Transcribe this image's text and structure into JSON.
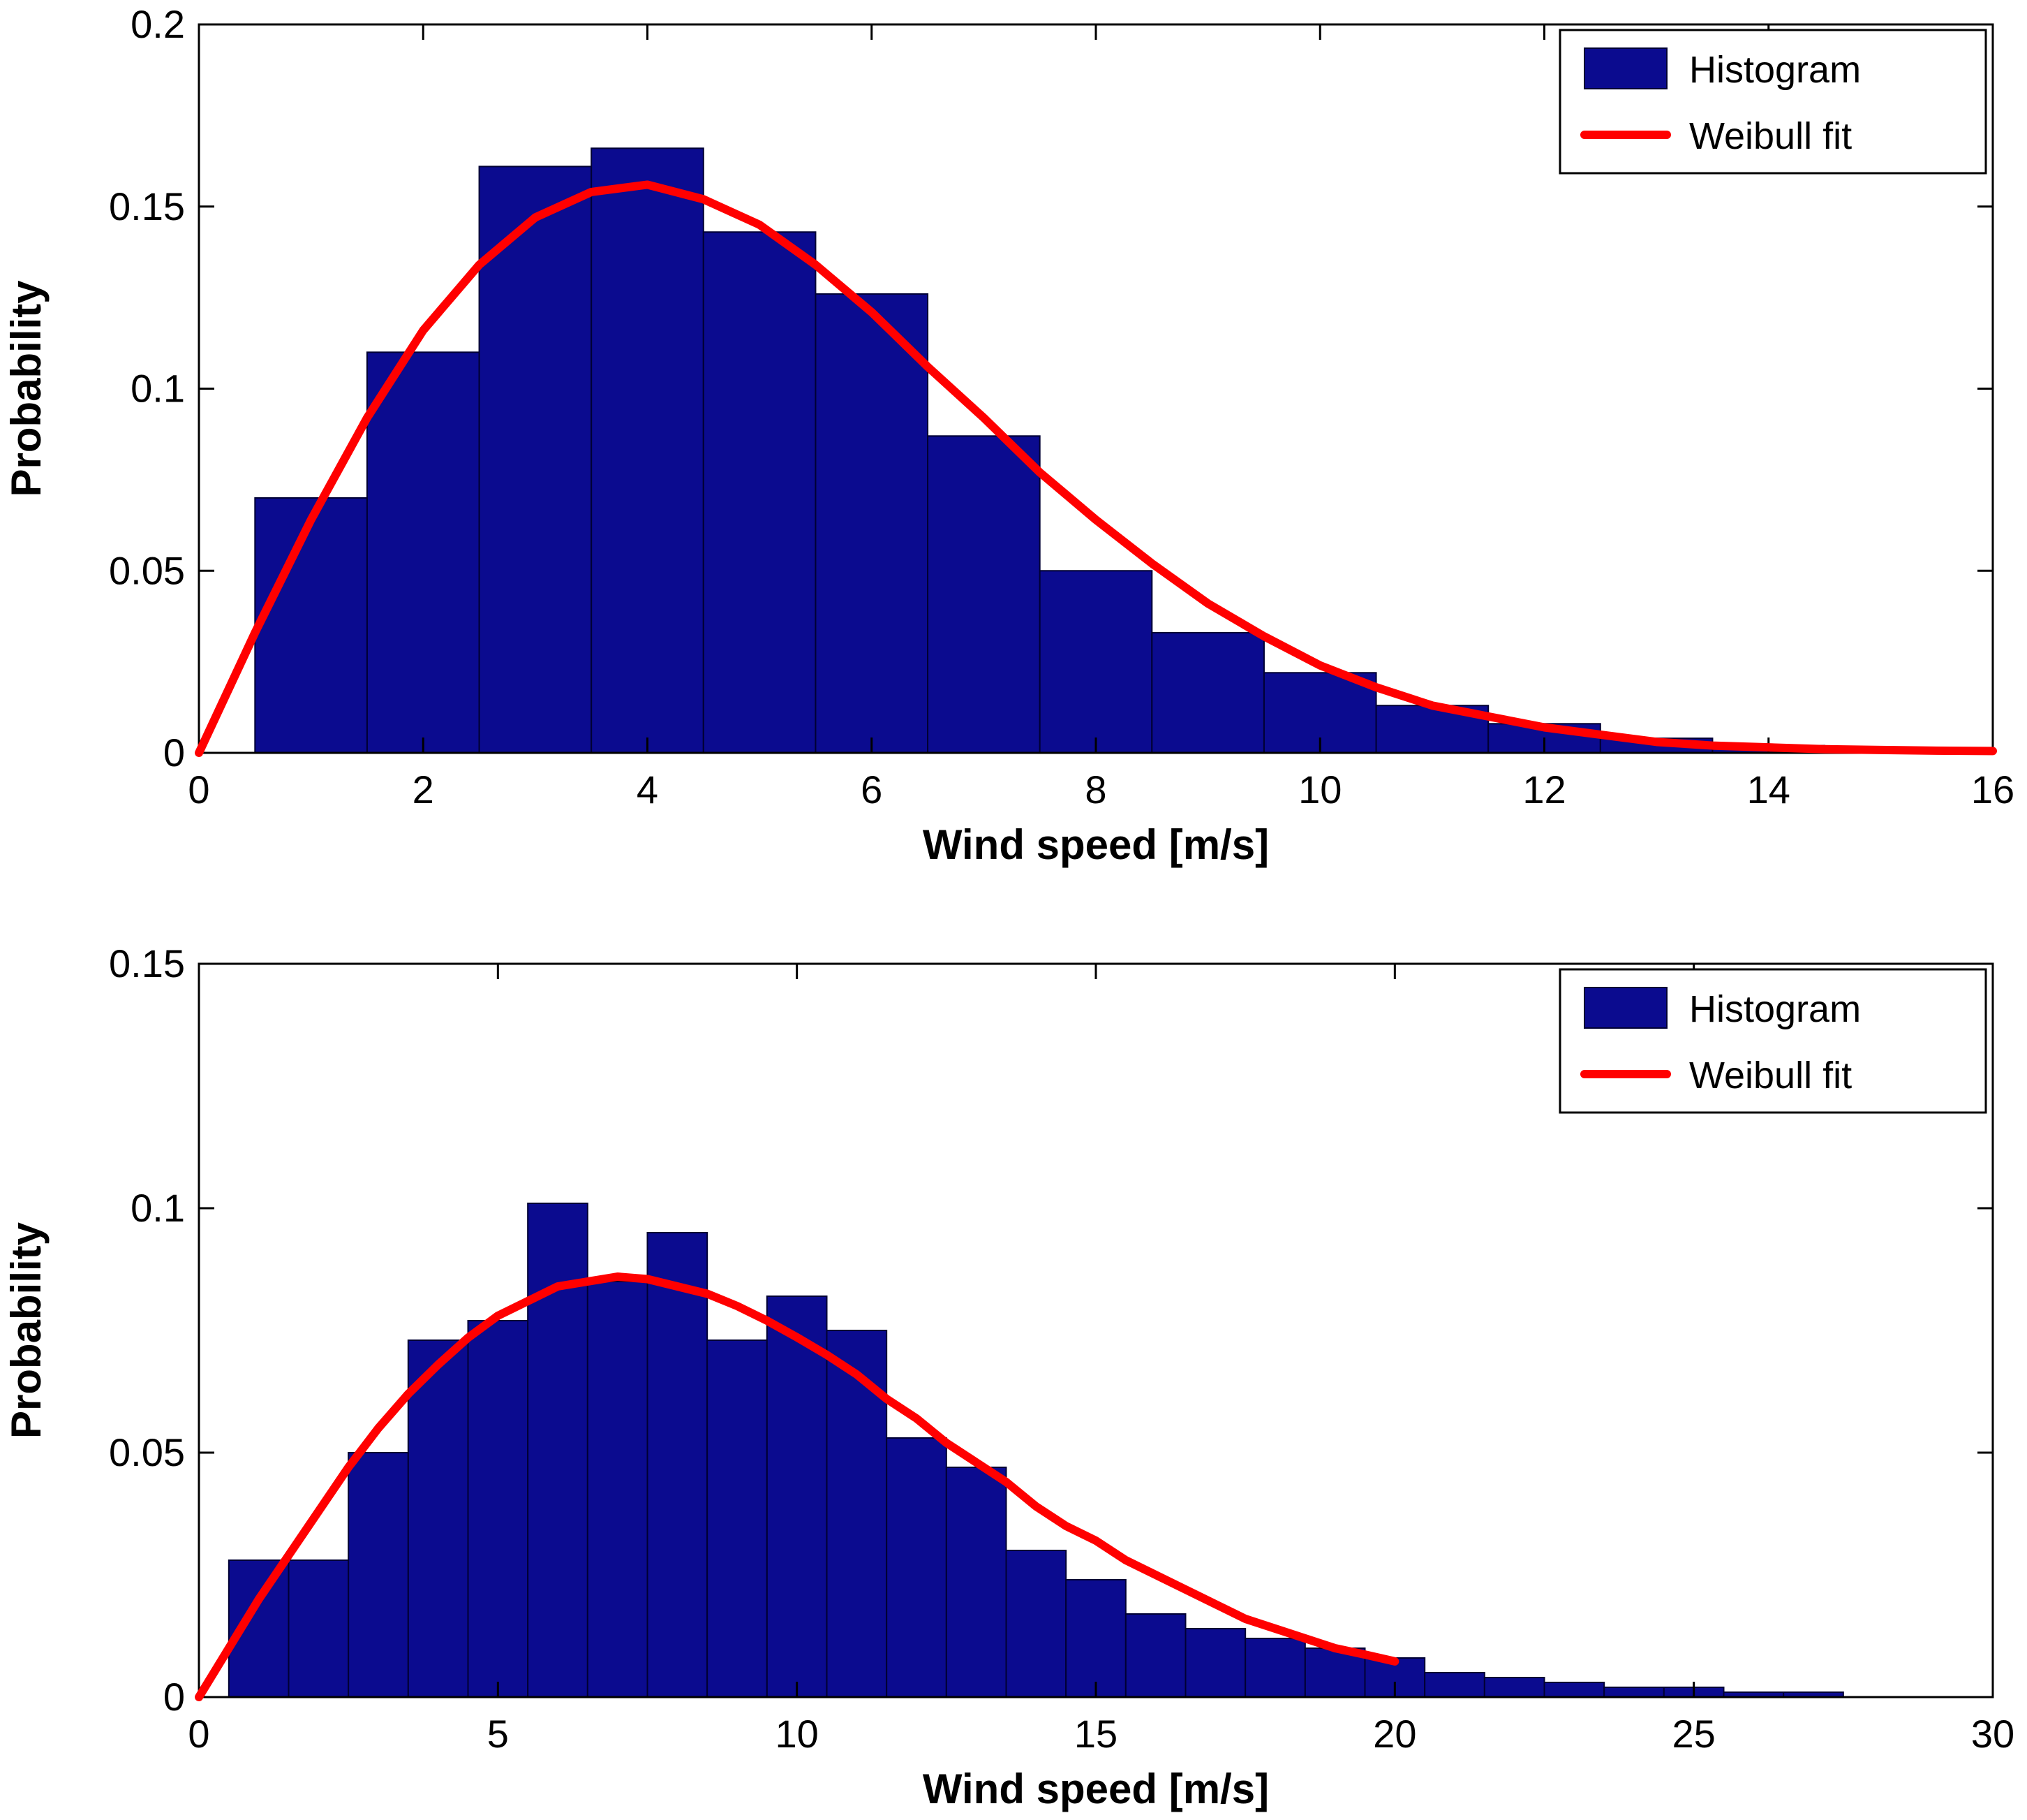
{
  "colors": {
    "background": "#ffffff",
    "bar_fill": "#0b0b8f",
    "bar_edge": "#000033",
    "fit_line": "#ff0000",
    "axis": "#000000"
  },
  "legend": {
    "histogram_label": "Histogram",
    "weibull_label": "Weibull fit"
  },
  "chart_data": [
    {
      "type": "bar",
      "title": "",
      "xlabel": "Wind speed [m/s]",
      "ylabel": "Probability",
      "xlim": [
        0,
        16
      ],
      "ylim": [
        0,
        0.2
      ],
      "xticks": [
        0,
        2,
        4,
        6,
        8,
        10,
        12,
        14,
        16
      ],
      "xtick_labels": [
        "0",
        "2",
        "4",
        "6",
        "8",
        "10",
        "12",
        "14",
        "16"
      ],
      "yticks": [
        0,
        0.05,
        0.1,
        0.15,
        0.2
      ],
      "ytick_labels": [
        "0",
        "0.05",
        "0.1",
        "0.15",
        "0.2"
      ],
      "legend_position": "top-right",
      "grid": false,
      "bins": {
        "start": 0.5,
        "width": 1,
        "values": [
          0.07,
          0.11,
          0.161,
          0.166,
          0.143,
          0.126,
          0.087,
          0.05,
          0.033,
          0.022,
          0.013,
          0.008,
          0.004,
          0.002,
          0.001
        ]
      },
      "fit": {
        "name": "Weibull fit",
        "x": [
          0,
          0.5,
          1,
          1.5,
          2,
          2.5,
          3,
          3.5,
          4,
          4.5,
          5,
          5.5,
          6,
          6.5,
          7,
          7.5,
          8,
          8.5,
          9,
          9.5,
          10,
          10.5,
          11,
          11.5,
          12,
          12.5,
          13,
          13.5,
          14,
          14.5,
          15,
          15.5,
          16
        ],
        "y": [
          0,
          0.033,
          0.064,
          0.092,
          0.116,
          0.134,
          0.147,
          0.154,
          0.156,
          0.152,
          0.145,
          0.134,
          0.121,
          0.106,
          0.092,
          0.077,
          0.064,
          0.052,
          0.041,
          0.032,
          0.024,
          0.018,
          0.013,
          0.01,
          0.007,
          0.005,
          0.003,
          0.002,
          0.0015,
          0.001,
          0.0008,
          0.0006,
          0.0005
        ]
      },
      "legend_items": [
        "Histogram",
        "Weibull fit"
      ]
    },
    {
      "type": "bar",
      "title": "",
      "xlabel": "Wind speed [m/s]",
      "ylabel": "Probability",
      "xlim": [
        0,
        30
      ],
      "ylim": [
        0,
        0.15
      ],
      "xticks": [
        0,
        5,
        10,
        15,
        20,
        25,
        30
      ],
      "xtick_labels": [
        "0",
        "5",
        "10",
        "15",
        "20",
        "25",
        "30"
      ],
      "yticks": [
        0,
        0.05,
        0.1,
        0.15
      ],
      "ytick_labels": [
        "0",
        "0.05",
        "0.1",
        "0.15"
      ],
      "legend_position": "top-right",
      "grid": false,
      "bins": {
        "start": 0.5,
        "width": 1,
        "values": [
          0.028,
          0.028,
          0.05,
          0.073,
          0.077,
          0.101,
          0.085,
          0.095,
          0.073,
          0.082,
          0.075,
          0.053,
          0.047,
          0.03,
          0.024,
          0.017,
          0.014,
          0.012,
          0.01,
          0.008,
          0.005,
          0.004,
          0.003,
          0.002,
          0.002,
          0.001,
          0.001
        ]
      },
      "fit": {
        "name": "Weibull fit",
        "x": [
          0,
          0.5,
          1,
          1.5,
          2,
          2.5,
          3,
          3.5,
          4,
          4.5,
          5,
          5.5,
          6,
          6.5,
          7,
          7.5,
          8,
          8.5,
          9,
          9.5,
          10,
          10.5,
          11,
          11.5,
          12,
          12.5,
          13,
          13.5,
          14,
          14.5,
          15,
          15.5,
          16,
          16.5,
          17,
          17.5,
          18,
          18.5,
          19,
          19.5,
          20
        ],
        "y": [
          0,
          0.01,
          0.02,
          0.029,
          0.038,
          0.047,
          0.055,
          0.062,
          0.068,
          0.0735,
          0.078,
          0.081,
          0.084,
          0.085,
          0.086,
          0.0855,
          0.084,
          0.0825,
          0.08,
          0.077,
          0.0736,
          0.07,
          0.066,
          0.061,
          0.057,
          0.052,
          0.048,
          0.044,
          0.039,
          0.035,
          0.032,
          0.028,
          0.025,
          0.022,
          0.019,
          0.016,
          0.014,
          0.012,
          0.01,
          0.0087,
          0.0073
        ]
      },
      "legend_items": [
        "Histogram",
        "Weibull fit"
      ]
    }
  ]
}
